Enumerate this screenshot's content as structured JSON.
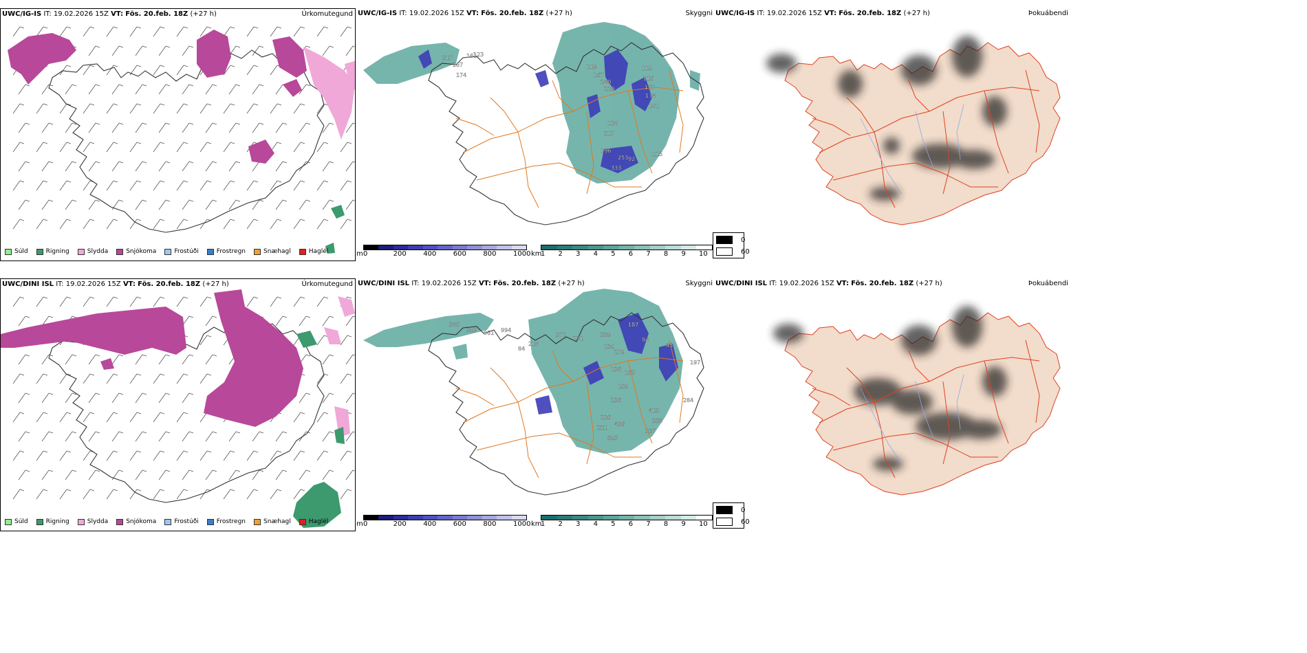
{
  "rows": [
    {
      "id": "igis",
      "model": "UWC/IG-IS",
      "it_label": "IT:",
      "it_value": "19.02.2026 15Z",
      "vt_label": "VT:",
      "vt_value": "Fös. 20.feb. 18Z",
      "lead": "(+27 h)"
    },
    {
      "id": "dini",
      "model": "UWC/DINI ISL",
      "it_label": "IT:",
      "it_value": "19.02.2026 15Z",
      "vt_label": "VT:",
      "vt_value": "Fös. 20.feb. 18Z",
      "lead": "(+27 h)"
    }
  ],
  "panel_types": {
    "precip": "Úrkomutegund",
    "cloud": "Skyggni",
    "fog": "Þokuábendi"
  },
  "precip_legend": [
    {
      "label": "Súld",
      "color": "#90ee90"
    },
    {
      "label": "Rigning",
      "color": "#3c9a6e"
    },
    {
      "label": "Slydda",
      "color": "#f0a8d8"
    },
    {
      "label": "Snjókoma",
      "color": "#b8489a"
    },
    {
      "label": "Frostúði",
      "color": "#9ec8f0"
    },
    {
      "label": "Frostregn",
      "color": "#3a7fc8"
    },
    {
      "label": "Snæhagl",
      "color": "#f0a030"
    },
    {
      "label": "Haglél",
      "color": "#e02020"
    }
  ],
  "cloud_base_scale": {
    "unit": "m",
    "ticks": [
      "0",
      "200",
      "400",
      "600",
      "800",
      "1000"
    ],
    "colors": [
      "#000000",
      "#1c1c7a",
      "#2b2b9a",
      "#3d3db0",
      "#5050c0",
      "#6464c8",
      "#7a7ad0",
      "#9090d8",
      "#a8a8e0",
      "#c0c0e8",
      "#d8d8f0"
    ]
  },
  "visibility_scale": {
    "unit": "km",
    "ticks": [
      "1",
      "2",
      "3",
      "4",
      "5",
      "6",
      "7",
      "8",
      "9",
      "10"
    ],
    "colors": [
      "#1a6e6e",
      "#2a7a78",
      "#3a8882",
      "#4a968e",
      "#5ea49a",
      "#74b2a8",
      "#8cc0b6",
      "#a4cec6",
      "#bcdcd6",
      "#d4eae6",
      "#ffffff"
    ]
  },
  "fog_scale": {
    "entries": [
      {
        "value": "0",
        "color": "#000000"
      },
      {
        "value": "60",
        "color": "#ffffff"
      }
    ]
  },
  "cloud_labels": [
    [
      "317",
      "267",
      "174",
      "161",
      "123",
      "119",
      "167",
      "240",
      "229",
      "110",
      "116",
      "157",
      "134",
      "181",
      "128",
      "217",
      "196",
      "253",
      "92",
      "115",
      "333",
      "830"
    ],
    [
      "385",
      "309",
      "961",
      "994",
      "84",
      "218",
      "377",
      "231",
      "339",
      "130",
      "187",
      "94",
      "43",
      "279",
      "136",
      "165",
      "159",
      "236",
      "226",
      "221",
      "436",
      "605",
      "415",
      "335",
      "337",
      "284",
      "197"
    ]
  ],
  "colors": {
    "snow": "#b8489a",
    "sleet": "#f0a8d8",
    "rain": "#3c9a6e",
    "roads": "#e07820",
    "land_fog": "#f2dccb",
    "fog_roads": "#e04020",
    "rivers": "#8ea8e8",
    "visibility": "#5ea89e",
    "cloudbase": "#3d3db8"
  }
}
